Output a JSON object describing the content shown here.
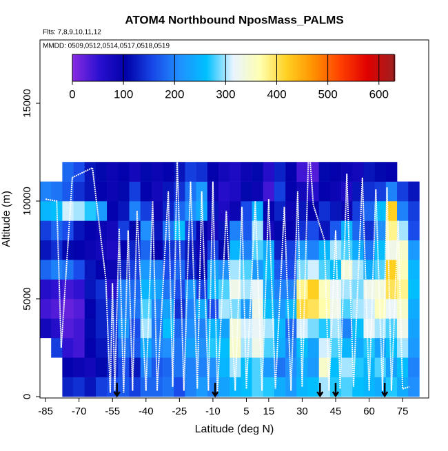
{
  "chart_data": {
    "type": "heatmap",
    "title": "ATOM4 Northbound NposMass_PALMS",
    "annotations": [
      "Flts: 7,8,9,10,11,12",
      "MMDD: 0509,0512,0514,0517,0518,0519"
    ],
    "x_label": "Latitude (deg N)",
    "y_label": "Altitude (m)",
    "xlim": [
      -87.5,
      86.7
    ],
    "ylim": [
      -70,
      18240
    ],
    "xticks": [
      -85,
      -70,
      -55,
      -40,
      -25,
      -10,
      5,
      15,
      30,
      45,
      60,
      75
    ],
    "yticks": [
      0,
      5000,
      10000,
      15000
    ],
    "x_edges": [
      -87.5,
      -82.5,
      -77.5,
      -72.5,
      -67.5,
      -62.5,
      -57.5,
      -52.5,
      -47.5,
      -42.5,
      -37.5,
      -32.5,
      -27.5,
      -22.5,
      -17.5,
      -12.5,
      -7.5,
      -2.5,
      2.5,
      7.5,
      12.5,
      17.5,
      22.5,
      27.5,
      32.5,
      37.5,
      42.5,
      47.5,
      52.5,
      57.5,
      62.5,
      67.5,
      72.5,
      77.5,
      82.5,
      87.5
    ],
    "y_edges": [
      0,
      1000,
      2000,
      3000,
      4000,
      5000,
      6000,
      7000,
      8000,
      9000,
      10000,
      11000,
      12000
    ],
    "z": [
      [
        null,
        null,
        130,
        140,
        120,
        150,
        160,
        170,
        150,
        180,
        180,
        190,
        160,
        200,
        220,
        200,
        230,
        250,
        260,
        280,
        270,
        240,
        220,
        250,
        260,
        300,
        270,
        280,
        260,
        250,
        240,
        270,
        240,
        210,
        null
      ],
      [
        null,
        null,
        100,
        90,
        80,
        110,
        130,
        160,
        120,
        200,
        170,
        180,
        190,
        200,
        200,
        210,
        250,
        300,
        260,
        280,
        220,
        190,
        210,
        240,
        220,
        350,
        260,
        300,
        270,
        250,
        280,
        230,
        260,
        200,
        null
      ],
      [
        null,
        150,
        50,
        40,
        100,
        120,
        140,
        190,
        170,
        240,
        200,
        210,
        190,
        230,
        210,
        270,
        260,
        350,
        300,
        330,
        280,
        240,
        200,
        260,
        230,
        310,
        280,
        250,
        240,
        270,
        230,
        260,
        300,
        220,
        null
      ],
      [
        80,
        60,
        30,
        40,
        110,
        130,
        150,
        220,
        160,
        300,
        190,
        260,
        180,
        210,
        200,
        250,
        230,
        340,
        310,
        320,
        300,
        250,
        180,
        310,
        290,
        270,
        300,
        200,
        260,
        320,
        300,
        280,
        330,
        230,
        null
      ],
      [
        40,
        30,
        20,
        30,
        100,
        130,
        140,
        200,
        190,
        280,
        200,
        230,
        140,
        200,
        240,
        160,
        300,
        290,
        220,
        330,
        260,
        220,
        250,
        410,
        400,
        370,
        330,
        280,
        300,
        310,
        360,
        320,
        350,
        240,
        null
      ],
      [
        60,
        50,
        40,
        50,
        120,
        140,
        60,
        200,
        180,
        250,
        230,
        190,
        160,
        220,
        150,
        250,
        280,
        330,
        300,
        320,
        240,
        200,
        200,
        380,
        420,
        360,
        320,
        300,
        290,
        330,
        340,
        400,
        380,
        260,
        null
      ],
      [
        180,
        200,
        190,
        160,
        120,
        100,
        90,
        130,
        150,
        220,
        200,
        160,
        180,
        130,
        110,
        230,
        210,
        300,
        280,
        220,
        260,
        170,
        160,
        290,
        310,
        280,
        260,
        340,
        300,
        240,
        280,
        420,
        360,
        250,
        null
      ],
      [
        120,
        140,
        110,
        100,
        90,
        80,
        70,
        100,
        130,
        180,
        100,
        140,
        150,
        120,
        90,
        150,
        110,
        250,
        200,
        280,
        240,
        130,
        150,
        220,
        200,
        250,
        300,
        280,
        240,
        190,
        260,
        330,
        350,
        220,
        null
      ],
      [
        150,
        180,
        160,
        120,
        100,
        90,
        80,
        150,
        110,
        210,
        120,
        190,
        260,
        150,
        100,
        80,
        120,
        200,
        170,
        300,
        80,
        110,
        100,
        140,
        160,
        120,
        170,
        250,
        180,
        140,
        210,
        380,
        300,
        160,
        null
      ],
      [
        250,
        260,
        310,
        300,
        270,
        220,
        100,
        120,
        200,
        150,
        90,
        130,
        180,
        210,
        240,
        120,
        70,
        90,
        160,
        250,
        100,
        130,
        90,
        120,
        100,
        140,
        120,
        90,
        150,
        180,
        260,
        420,
        200,
        150,
        null
      ],
      [
        200,
        190,
        170,
        140,
        120,
        100,
        90,
        110,
        150,
        100,
        80,
        120,
        140,
        190,
        220,
        90,
        60,
        70,
        110,
        90,
        40,
        150,
        100,
        80,
        60,
        100,
        90,
        70,
        120,
        140,
        150,
        200,
        150,
        120,
        null
      ],
      [
        null,
        null,
        180,
        160,
        120,
        110,
        90,
        100,
        80,
        110,
        90,
        100,
        120,
        150,
        140,
        100,
        80,
        70,
        90,
        110,
        60,
        130,
        100,
        40,
        30,
        110,
        100,
        90,
        80,
        120,
        110,
        100,
        null,
        null,
        null
      ]
    ],
    "colorbar_lim": [
      0,
      630
    ],
    "colorbar_ticks": [
      0,
      100,
      200,
      300,
      400,
      500,
      600
    ],
    "colormap": [
      "#8a2be2",
      "#2a10d0",
      "#0000a8",
      "#1848e8",
      "#2090ff",
      "#00c0ff",
      "#e8f4ff",
      "#ffffb0",
      "#ffd020",
      "#ff9000",
      "#ff4000",
      "#e00000",
      "#a02020"
    ],
    "track": {
      "color": "#ffffff",
      "x": [
        -85,
        -80,
        -78,
        -73,
        -64,
        -58,
        -56,
        -55,
        -54,
        -52,
        -50,
        -48,
        -46,
        -44,
        -40,
        -37,
        -35,
        -30,
        -28,
        -26,
        -23,
        -20,
        -17,
        -15,
        -12,
        -10,
        -8,
        -4,
        0,
        3,
        5,
        9,
        12,
        15,
        18,
        22,
        25,
        28,
        30,
        33,
        35,
        40,
        42,
        45,
        47,
        50,
        53,
        57,
        60,
        63,
        66,
        68,
        70,
        73,
        75,
        78
      ],
      "y": [
        10100,
        10000,
        2500,
        11200,
        11700,
        6000,
        200,
        5800,
        300,
        8600,
        200,
        8500,
        300,
        9500,
        300,
        10000,
        300,
        10500,
        500,
        12200,
        300,
        11000,
        400,
        10500,
        300,
        11000,
        200,
        9500,
        300,
        9700,
        400,
        10000,
        300,
        10100,
        400,
        9700,
        300,
        10500,
        500,
        13000,
        9800,
        8000,
        300,
        8500,
        400,
        11400,
        500,
        11200,
        300,
        10600,
        300,
        10700,
        300,
        9000,
        400,
        500
      ]
    },
    "arrows_x": [
      -53,
      -9,
      38,
      45,
      67
    ]
  }
}
